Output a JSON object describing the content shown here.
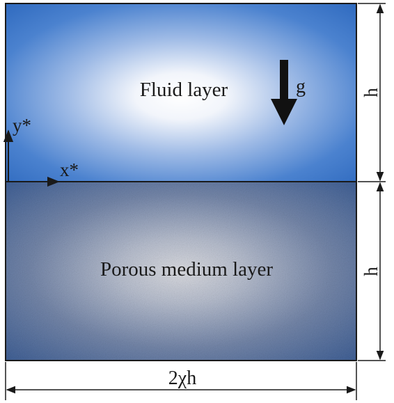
{
  "fluid_layer": {
    "label": "Fluid layer",
    "gravity_label": "g",
    "colors": {
      "center": "#ffffff",
      "edge": "#2f6abf"
    }
  },
  "porous_layer": {
    "label": "Porous medium layer",
    "colors": {
      "center": "#dcdde2",
      "edge": "#3e5f96"
    }
  },
  "axes": {
    "x_label": "x*",
    "y_label": "y*"
  },
  "dimensions": {
    "top_height_label": "h",
    "bottom_height_label": "h",
    "width_label": "2χh"
  }
}
